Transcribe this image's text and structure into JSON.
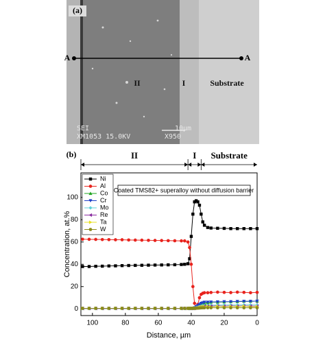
{
  "image_panel": {
    "panel_label": "(a)",
    "line_label_left": "A",
    "line_label_right": "A",
    "region_outer": "II",
    "region_inner": "I",
    "region_substrate": "Substrate",
    "info_1": "SEI",
    "info_2": "XM1053 15.0KV",
    "scale_bar": "10µm",
    "magnification": "X950"
  },
  "chart_data": {
    "type": "line",
    "panel_label": "(b)",
    "annotation": "Coated TMS82+ superalloy without diffusion barrier",
    "x_label": "Distance, µm",
    "y_label": "Concentration, at.%",
    "regions": [
      {
        "label": "II",
        "from": 107,
        "to": 42
      },
      {
        "label": "I",
        "from": 42,
        "to": 34
      },
      {
        "label": "Substrate",
        "from": 34,
        "to": 0
      }
    ],
    "xlim": [
      107,
      0
    ],
    "xticks": [
      100,
      80,
      60,
      40,
      20,
      0
    ],
    "ylim": [
      -6,
      122
    ],
    "yticks": [
      0,
      20,
      40,
      60,
      80,
      100
    ],
    "x": [
      106,
      102,
      98,
      94,
      90,
      86,
      82,
      78,
      74,
      70,
      66,
      62,
      58,
      54,
      50,
      46,
      44,
      42,
      41,
      40,
      39,
      38,
      37,
      36,
      35,
      34,
      33,
      32,
      30,
      28,
      24,
      20,
      16,
      12,
      8,
      4,
      0
    ],
    "series": [
      {
        "name": "Ni",
        "color": "#000000",
        "marker": "square",
        "values": [
          38,
          38,
          38.2,
          38.3,
          38.5,
          38.6,
          38.8,
          38.9,
          39,
          39.1,
          39.2,
          39.3,
          39.4,
          39.5,
          39.6,
          39.8,
          40,
          40.5,
          45,
          65,
          85,
          96,
          97,
          96,
          93,
          85,
          78,
          75,
          73,
          72.5,
          72.3,
          72.2,
          72,
          72,
          72,
          72,
          72
        ]
      },
      {
        "name": "Al",
        "color": "#e8231d",
        "marker": "circle",
        "values": [
          62.5,
          62.4,
          62.3,
          62.2,
          62.1,
          62,
          62,
          61.8,
          61.7,
          61.6,
          61.5,
          61.4,
          61.3,
          61.2,
          61.1,
          61,
          61,
          60,
          55,
          40,
          20,
          5,
          1,
          4,
          10,
          13,
          14,
          14.5,
          14.5,
          14.7,
          15,
          14.8,
          14.6,
          15,
          14.8,
          14.5,
          14.8
        ]
      },
      {
        "name": "Co",
        "color": "#1fa51f",
        "marker": "triangle-up",
        "values": [
          0.5,
          0.5,
          0.5,
          0.5,
          0.5,
          0.5,
          0.5,
          0.5,
          0.5,
          0.5,
          0.5,
          0.5,
          0.5,
          0.5,
          0.5,
          0.5,
          0.5,
          0.5,
          0.5,
          0.5,
          0.5,
          1,
          1.5,
          2,
          3,
          4,
          4.5,
          5,
          5.5,
          6,
          6,
          6.2,
          6.5,
          6.5,
          6.8,
          6.8,
          7
        ]
      },
      {
        "name": "Cr",
        "color": "#1f3fc8",
        "marker": "triangle-down",
        "values": [
          0.4,
          0.4,
          0.4,
          0.4,
          0.4,
          0.4,
          0.4,
          0.4,
          0.4,
          0.4,
          0.4,
          0.4,
          0.4,
          0.4,
          0.4,
          0.4,
          0.4,
          0.4,
          0.4,
          0.4,
          0.5,
          1,
          2,
          3,
          4,
          5,
          5.5,
          6,
          6,
          6.2,
          6.3,
          6.5,
          6.5,
          6.7,
          6.8,
          6.8,
          7
        ]
      },
      {
        "name": "Mo",
        "color": "#5fd0d8",
        "marker": "diamond",
        "values": [
          0.3,
          0.3,
          0.3,
          0.3,
          0.3,
          0.3,
          0.3,
          0.3,
          0.3,
          0.3,
          0.3,
          0.3,
          0.3,
          0.3,
          0.3,
          0.3,
          0.3,
          0.3,
          0.3,
          0.3,
          0.3,
          0.5,
          1,
          1.5,
          2,
          2.5,
          3,
          3,
          3.2,
          3.3,
          3.4,
          3.5,
          3.5,
          3.5,
          3.6,
          3.6,
          3.5
        ]
      },
      {
        "name": "Re",
        "color": "#8a2ca0",
        "marker": "triangle-left",
        "values": [
          0.3,
          0.3,
          0.3,
          0.3,
          0.3,
          0.3,
          0.3,
          0.3,
          0.3,
          0.3,
          0.3,
          0.3,
          0.3,
          0.3,
          0.3,
          0.3,
          0.3,
          0.3,
          0.3,
          0.3,
          0.3,
          0.4,
          0.8,
          1.2,
          1.6,
          2,
          2.2,
          2.4,
          2.5,
          2.5,
          2.6,
          2.5,
          2.6,
          2.5,
          2.6,
          2.5,
          2.5
        ]
      },
      {
        "name": "Ta",
        "color": "#e8e020",
        "marker": "triangle-right",
        "values": [
          0.5,
          0.5,
          0.5,
          0.5,
          0.5,
          0.5,
          0.5,
          0.5,
          0.5,
          0.5,
          0.5,
          0.5,
          0.5,
          0.5,
          0.5,
          0.5,
          0.5,
          0.5,
          0.5,
          0.5,
          0.5,
          0.6,
          0.8,
          1,
          1.5,
          1.8,
          2,
          2,
          2.2,
          1.8,
          2.3,
          1.9,
          2.2,
          2,
          2.4,
          1.9,
          2.1
        ]
      },
      {
        "name": "W",
        "color": "#8a8a1a",
        "marker": "hexagon",
        "values": [
          0.5,
          0.5,
          0.5,
          0.5,
          0.5,
          0.5,
          0.5,
          0.5,
          0.5,
          0.5,
          0.5,
          0.5,
          0.5,
          0.5,
          0.5,
          0.5,
          0.5,
          0.5,
          0.5,
          0.5,
          0.5,
          0.5,
          0.6,
          0.7,
          0.8,
          0.9,
          1,
          1,
          1,
          1,
          1,
          1,
          1,
          1,
          1,
          1,
          1
        ]
      }
    ]
  }
}
